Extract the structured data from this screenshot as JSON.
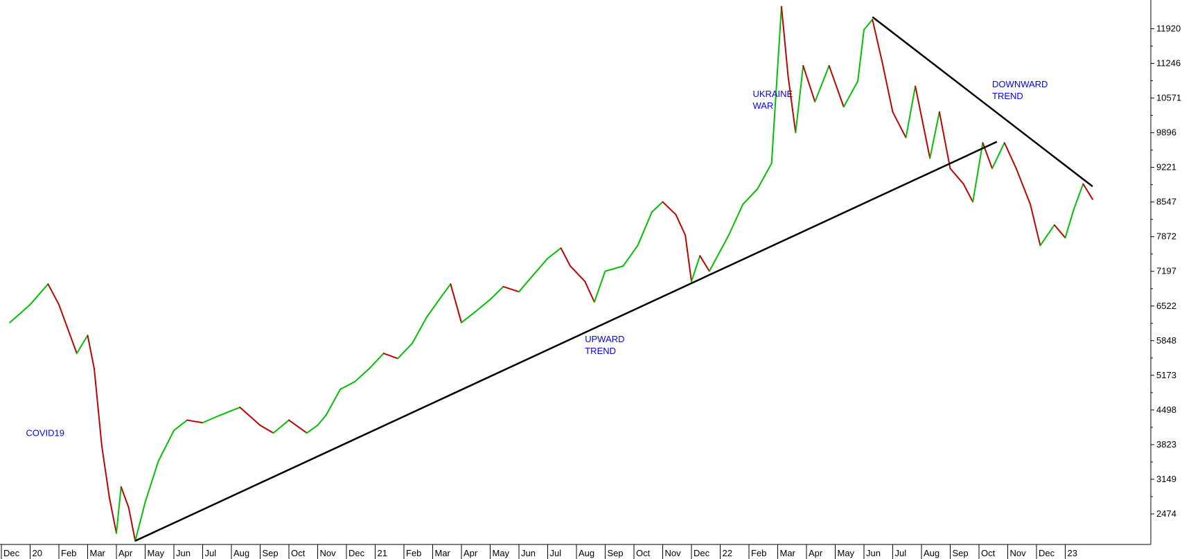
{
  "chart_data": {
    "type": "line",
    "title": "",
    "xlabel": "",
    "ylabel": "",
    "x_axis": {
      "start_month": "2019-12",
      "end_month": "2023-02",
      "tick_labels": [
        "Dec",
        "20",
        "Feb",
        "Mar",
        "Apr",
        "May",
        "Jun",
        "Jul",
        "Aug",
        "Sep",
        "Oct",
        "Nov",
        "Dec",
        "21",
        "Feb",
        "Mar",
        "Apr",
        "May",
        "Jun",
        "Jul",
        "Aug",
        "Sep",
        "Oct",
        "Nov",
        "Dec",
        "22",
        "Feb",
        "Mar",
        "Apr",
        "May",
        "Jun",
        "Jul",
        "Aug",
        "Sep",
        "Oct",
        "Nov",
        "Dec",
        "23"
      ]
    },
    "y_axis": {
      "position": "right",
      "range": [
        1880,
        12480
      ],
      "ticks": [
        2474,
        3149,
        3823,
        4498,
        5173,
        5848,
        6522,
        7197,
        7872,
        8547,
        9221,
        9896,
        10571,
        11246,
        11920
      ]
    },
    "grid": false,
    "colors": {
      "up": "#00c000",
      "down": "#c00000",
      "trendline": "#000000",
      "annotation": "#0000ff",
      "axis": "#000000"
    },
    "series": [
      {
        "values": [
          [
            "2019-12-10",
            6200
          ],
          [
            "2020-01-01",
            6550
          ],
          [
            "2020-01-20",
            6950
          ],
          [
            "2020-02-01",
            6550
          ],
          [
            "2020-02-10",
            6100
          ],
          [
            "2020-02-20",
            5600
          ],
          [
            "2020-03-01",
            5950
          ],
          [
            "2020-03-08",
            5300
          ],
          [
            "2020-03-16",
            3800
          ],
          [
            "2020-03-24",
            2800
          ],
          [
            "2020-04-01",
            2100
          ],
          [
            "2020-04-06",
            3000
          ],
          [
            "2020-04-14",
            2600
          ],
          [
            "2020-04-21",
            1950
          ],
          [
            "2020-05-01",
            2700
          ],
          [
            "2020-05-15",
            3500
          ],
          [
            "2020-06-01",
            4100
          ],
          [
            "2020-06-15",
            4300
          ],
          [
            "2020-07-01",
            4250
          ],
          [
            "2020-07-20",
            4400
          ],
          [
            "2020-08-10",
            4550
          ],
          [
            "2020-09-01",
            4200
          ],
          [
            "2020-09-15",
            4050
          ],
          [
            "2020-10-01",
            4300
          ],
          [
            "2020-10-20",
            4050
          ],
          [
            "2020-11-01",
            4200
          ],
          [
            "2020-11-10",
            4400
          ],
          [
            "2020-11-25",
            4900
          ],
          [
            "2020-12-10",
            5050
          ],
          [
            "2020-12-25",
            5300
          ],
          [
            "2021-01-10",
            5600
          ],
          [
            "2021-01-25",
            5500
          ],
          [
            "2021-02-10",
            5800
          ],
          [
            "2021-02-25",
            6300
          ],
          [
            "2021-03-10",
            6700
          ],
          [
            "2021-03-20",
            6950
          ],
          [
            "2021-04-01",
            6200
          ],
          [
            "2021-04-15",
            6400
          ],
          [
            "2021-05-01",
            6650
          ],
          [
            "2021-05-15",
            6900
          ],
          [
            "2021-06-01",
            6800
          ],
          [
            "2021-06-15",
            7100
          ],
          [
            "2021-07-01",
            7450
          ],
          [
            "2021-07-15",
            7650
          ],
          [
            "2021-07-25",
            7300
          ],
          [
            "2021-08-10",
            7000
          ],
          [
            "2021-08-20",
            6600
          ],
          [
            "2021-09-01",
            7200
          ],
          [
            "2021-09-20",
            7300
          ],
          [
            "2021-10-05",
            7700
          ],
          [
            "2021-10-20",
            8350
          ],
          [
            "2021-11-01",
            8550
          ],
          [
            "2021-11-15",
            8300
          ],
          [
            "2021-11-25",
            7900
          ],
          [
            "2021-12-01",
            7000
          ],
          [
            "2021-12-10",
            7500
          ],
          [
            "2021-12-20",
            7200
          ],
          [
            "2022-01-10",
            7900
          ],
          [
            "2022-01-25",
            8500
          ],
          [
            "2022-02-10",
            8800
          ],
          [
            "2022-02-25",
            9300
          ],
          [
            "2022-03-05",
            12350
          ],
          [
            "2022-03-12",
            11000
          ],
          [
            "2022-03-20",
            9900
          ],
          [
            "2022-03-28",
            11200
          ],
          [
            "2022-04-10",
            10500
          ],
          [
            "2022-04-25",
            11200
          ],
          [
            "2022-05-10",
            10400
          ],
          [
            "2022-05-25",
            10900
          ],
          [
            "2022-06-01",
            11900
          ],
          [
            "2022-06-10",
            12100
          ],
          [
            "2022-06-20",
            11300
          ],
          [
            "2022-07-01",
            10300
          ],
          [
            "2022-07-15",
            9800
          ],
          [
            "2022-07-25",
            10800
          ],
          [
            "2022-08-10",
            9400
          ],
          [
            "2022-08-20",
            10300
          ],
          [
            "2022-09-01",
            9200
          ],
          [
            "2022-09-15",
            8900
          ],
          [
            "2022-09-25",
            8550
          ],
          [
            "2022-10-05",
            9700
          ],
          [
            "2022-10-15",
            9200
          ],
          [
            "2022-10-28",
            9700
          ],
          [
            "2022-11-10",
            9200
          ],
          [
            "2022-11-25",
            8500
          ],
          [
            "2022-12-05",
            7700
          ],
          [
            "2022-12-20",
            8100
          ],
          [
            "2023-01-01",
            7850
          ],
          [
            "2023-01-10",
            8400
          ],
          [
            "2023-01-20",
            8900
          ],
          [
            "2023-01-30",
            8600
          ]
        ]
      }
    ],
    "trendlines": [
      {
        "from": [
          "2020-04-21",
          1950
        ],
        "to": [
          "2022-10-20",
          9720
        ]
      },
      {
        "from": [
          "2022-06-10",
          12150
        ],
        "to": [
          "2023-01-30",
          8850
        ]
      }
    ],
    "annotations": [
      {
        "text": [
          "COVID19"
        ],
        "at": [
          "2019-12-27",
          3990
        ]
      },
      {
        "text": [
          "UPWARD",
          "TREND"
        ],
        "at": [
          "2021-08-10",
          5820
        ]
      },
      {
        "text": [
          "UKRAINE",
          "WAR"
        ],
        "at": [
          "2022-02-05",
          10590
        ]
      },
      {
        "text": [
          "DOWNWARD",
          "TREND"
        ],
        "at": [
          "2022-10-15",
          10780
        ]
      }
    ]
  }
}
